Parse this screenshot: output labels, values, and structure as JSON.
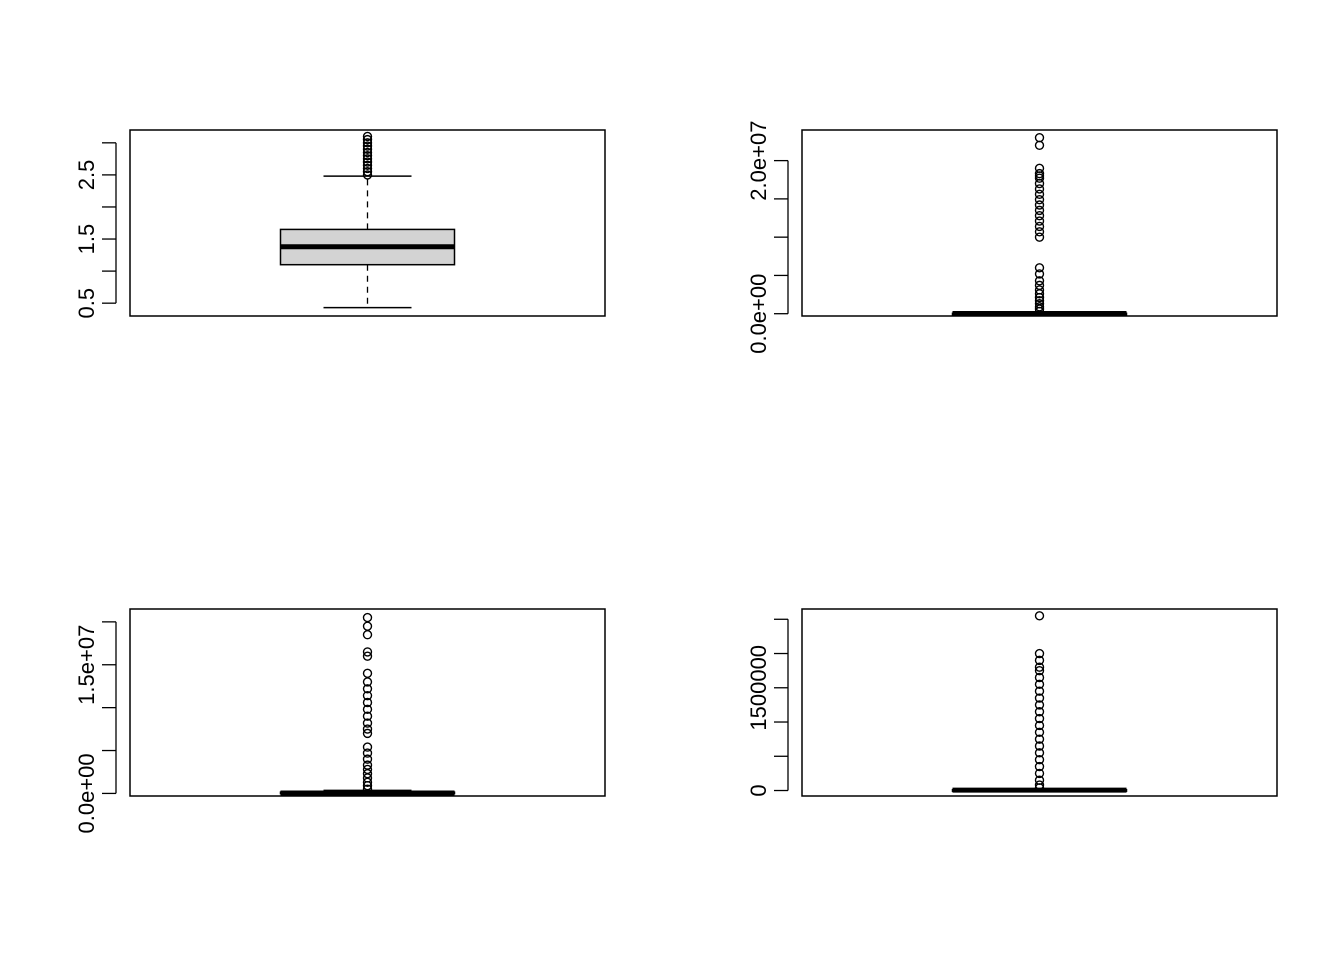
{
  "chart_data": [
    {
      "type": "boxplot",
      "ylim": [
        0.3,
        3.2
      ],
      "yticks": [
        0.5,
        1.0,
        1.5,
        2.0,
        2.5,
        3.0
      ],
      "ytick_labels": [
        "0.5",
        "",
        "1.5",
        "",
        "2.5",
        ""
      ],
      "box": {
        "lower_whisker": 0.43,
        "q1": 1.1,
        "median": 1.38,
        "q3": 1.65,
        "upper_whisker": 2.48,
        "fill": "#d3d3d3"
      },
      "outliers": [
        2.5,
        2.55,
        2.6,
        2.65,
        2.7,
        2.75,
        2.8,
        2.85,
        2.9,
        2.95,
        3.0,
        3.05,
        3.1
      ],
      "grid": false
    },
    {
      "type": "boxplot",
      "ylim": [
        -300000,
        24000000
      ],
      "yticks": [
        0,
        5000000,
        10000000,
        15000000,
        20000000
      ],
      "ytick_labels": [
        "0.0e+00",
        "",
        "",
        "",
        "2.0e+07"
      ],
      "box": {
        "lower_whisker": 0,
        "q1": 0,
        "median": 20000,
        "q3": 60000,
        "upper_whisker": 150000,
        "fill": "#d3d3d3"
      },
      "outliers": [
        300000,
        600000,
        900000,
        1300000,
        1700000,
        2100000,
        2600000,
        3100000,
        3700000,
        4300000,
        5200000,
        6000000,
        10000000,
        10700000,
        11400000,
        12100000,
        12800000,
        13500000,
        14200000,
        14900000,
        15600000,
        16300000,
        17000000,
        17700000,
        18000000,
        18300000,
        19000000,
        22000000,
        23000000
      ],
      "grid": false
    },
    {
      "type": "boxplot",
      "ylim": [
        -300000,
        21500000
      ],
      "yticks": [
        0,
        5000000,
        10000000,
        15000000,
        20000000
      ],
      "ytick_labels": [
        "0.0e+00",
        "",
        "",
        "1.5e+07",
        ""
      ],
      "box": {
        "lower_whisker": 0,
        "q1": 0,
        "median": 50000,
        "q3": 150000,
        "upper_whisker": 350000,
        "fill": "#d3d3d3"
      },
      "outliers": [
        500000,
        900000,
        1300000,
        1800000,
        2300000,
        2800000,
        3300000,
        4000000,
        4700000,
        5400000,
        7000000,
        7500000,
        8200000,
        9000000,
        9800000,
        10600000,
        11400000,
        12200000,
        13000000,
        14000000,
        16000000,
        16500000,
        18500000,
        19500000,
        20500000
      ],
      "grid": false
    },
    {
      "type": "boxplot",
      "ylim": [
        -80000,
        2650000
      ],
      "yticks": [
        0,
        500000,
        1000000,
        1500000,
        2000000,
        2500000
      ],
      "ytick_labels": [
        "0",
        "",
        "",
        "1500000",
        "",
        ""
      ],
      "box": {
        "lower_whisker": 0,
        "q1": 0,
        "median": 5000,
        "q3": 12000,
        "upper_whisker": 25000,
        "fill": "#d3d3d3"
      },
      "outliers": [
        40000,
        80000,
        150000,
        250000,
        350000,
        450000,
        550000,
        650000,
        750000,
        850000,
        950000,
        1050000,
        1150000,
        1250000,
        1350000,
        1450000,
        1550000,
        1650000,
        1750000,
        1800000,
        1900000,
        2000000,
        2550000
      ],
      "grid": false
    }
  ]
}
